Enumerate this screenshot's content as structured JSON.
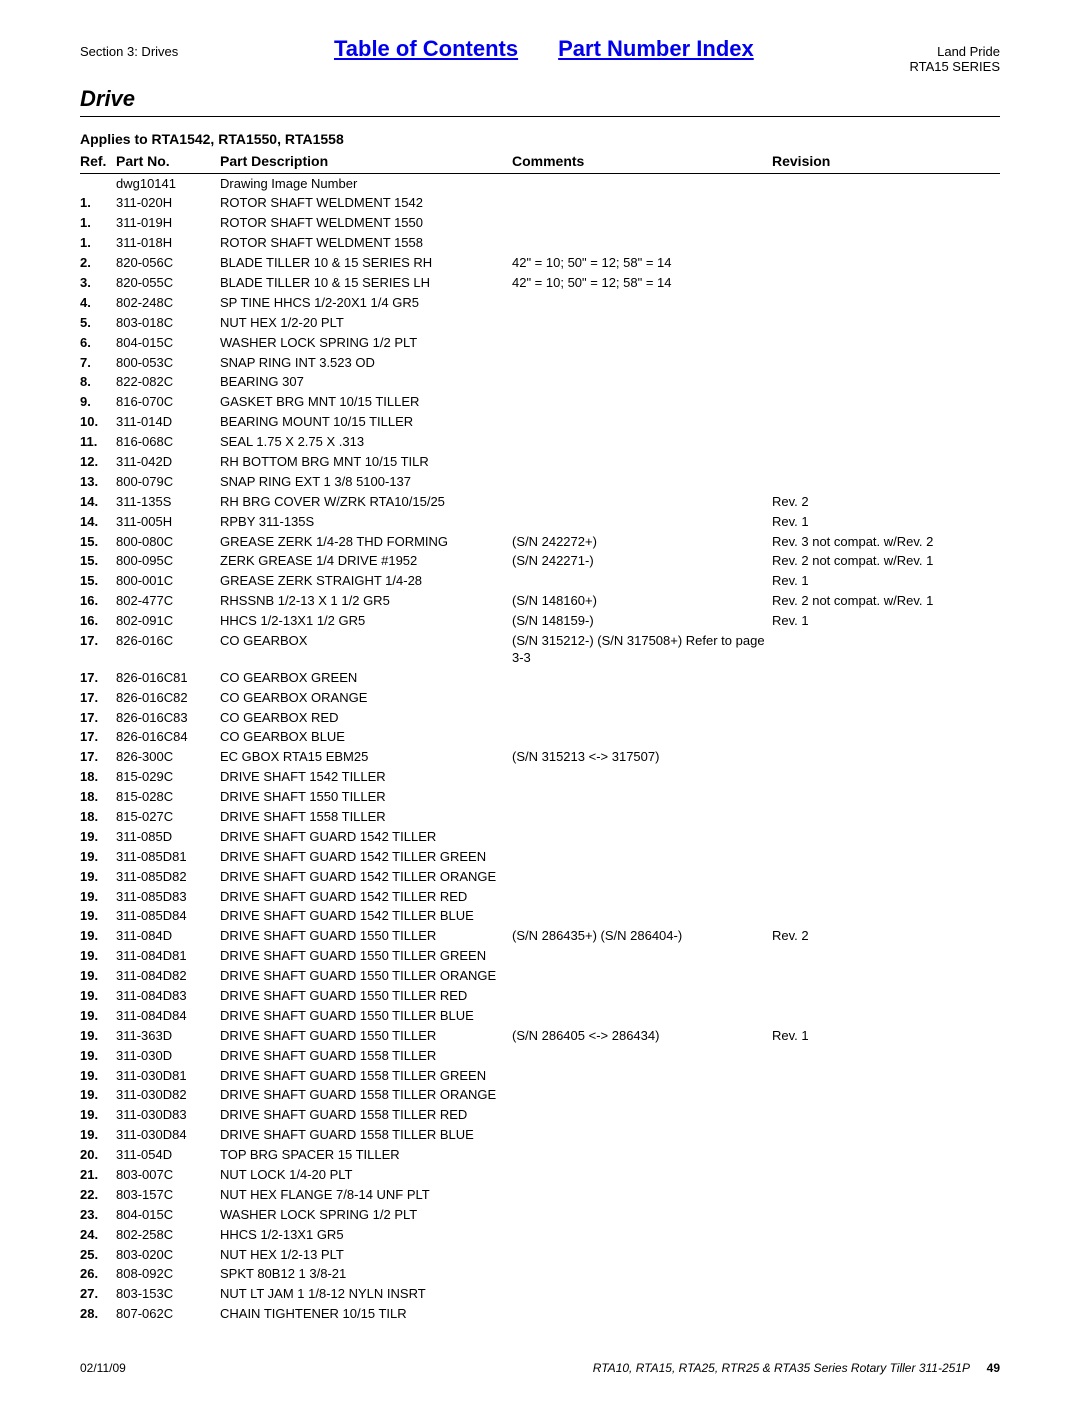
{
  "header": {
    "section_label": "Section 3: Drives",
    "toc_link": "Table of Contents",
    "pni_link": "Part Number Index",
    "brand": "Land Pride",
    "series": "RTA15 SERIES",
    "title": "Drive",
    "applies": "Applies to RTA1542, RTA1550, RTA1558"
  },
  "table": {
    "columns": {
      "ref": "Ref.",
      "partno": "Part No.",
      "desc": "Part Description",
      "comments": "Comments",
      "revision": "Revision"
    },
    "rows": [
      {
        "ref": "",
        "partno": "dwg10141",
        "desc": "Drawing Image Number",
        "comments": "",
        "revision": ""
      },
      {
        "ref": "1.",
        "partno": "311-020H",
        "desc": "ROTOR SHAFT WELDMENT 1542",
        "comments": "",
        "revision": ""
      },
      {
        "ref": "1.",
        "partno": "311-019H",
        "desc": "ROTOR SHAFT WELDMENT 1550",
        "comments": "",
        "revision": ""
      },
      {
        "ref": "1.",
        "partno": "311-018H",
        "desc": "ROTOR SHAFT WELDMENT 1558",
        "comments": "",
        "revision": ""
      },
      {
        "ref": "2.",
        "partno": "820-056C",
        "desc": "BLADE TILLER 10 & 15 SERIES RH",
        "comments": "42\" = 10; 50\" = 12; 58\" = 14",
        "revision": ""
      },
      {
        "ref": "3.",
        "partno": "820-055C",
        "desc": "BLADE TILLER 10 & 15 SERIES LH",
        "comments": "42\" = 10; 50\" = 12; 58\" = 14",
        "revision": ""
      },
      {
        "ref": "4.",
        "partno": "802-248C",
        "desc": "SP TINE HHCS 1/2-20X1 1/4 GR5",
        "comments": "",
        "revision": ""
      },
      {
        "ref": "5.",
        "partno": "803-018C",
        "desc": "NUT HEX 1/2-20 PLT",
        "comments": "",
        "revision": ""
      },
      {
        "ref": "6.",
        "partno": "804-015C",
        "desc": "WASHER LOCK SPRING 1/2 PLT",
        "comments": "",
        "revision": ""
      },
      {
        "ref": "7.",
        "partno": "800-053C",
        "desc": "SNAP RING INT 3.523 OD",
        "comments": "",
        "revision": ""
      },
      {
        "ref": "8.",
        "partno": "822-082C",
        "desc": "BEARING 307",
        "comments": "",
        "revision": ""
      },
      {
        "ref": "9.",
        "partno": "816-070C",
        "desc": "GASKET BRG MNT 10/15 TILLER",
        "comments": "",
        "revision": ""
      },
      {
        "ref": "10.",
        "partno": "311-014D",
        "desc": "BEARING MOUNT 10/15 TILLER",
        "comments": "",
        "revision": ""
      },
      {
        "ref": "11.",
        "partno": "816-068C",
        "desc": "SEAL 1.75 X 2.75 X .313",
        "comments": "",
        "revision": ""
      },
      {
        "ref": "12.",
        "partno": "311-042D",
        "desc": "RH BOTTOM BRG MNT 10/15 TILR",
        "comments": "",
        "revision": ""
      },
      {
        "ref": "13.",
        "partno": "800-079C",
        "desc": "SNAP RING EXT 1 3/8 5100-137",
        "comments": "",
        "revision": ""
      },
      {
        "ref": "14.",
        "partno": "311-135S",
        "desc": "RH BRG COVER W/ZRK RTA10/15/25",
        "comments": "",
        "revision": "Rev. 2"
      },
      {
        "ref": "14.",
        "partno": "311-005H",
        "desc": "RPBY 311-135S",
        "comments": "",
        "revision": "Rev. 1"
      },
      {
        "ref": "15.",
        "partno": "800-080C",
        "desc": "GREASE ZERK 1/4-28 THD FORMING",
        "comments": "(S/N 242272+)",
        "revision": "Rev. 3 not compat. w/Rev. 2"
      },
      {
        "ref": "15.",
        "partno": "800-095C",
        "desc": "ZERK GREASE 1/4 DRIVE #1952",
        "comments": "(S/N 242271-)",
        "revision": "Rev. 2 not compat. w/Rev. 1"
      },
      {
        "ref": "15.",
        "partno": "800-001C",
        "desc": "GREASE ZERK STRAIGHT 1/4-28",
        "comments": "",
        "revision": "Rev. 1"
      },
      {
        "ref": "16.",
        "partno": "802-477C",
        "desc": "RHSSNB 1/2-13 X 1 1/2 GR5",
        "comments": "(S/N 148160+)",
        "revision": "Rev. 2 not compat. w/Rev. 1"
      },
      {
        "ref": "16.",
        "partno": "802-091C",
        "desc": "HHCS 1/2-13X1 1/2 GR5",
        "comments": "(S/N 148159-)",
        "revision": "Rev. 1"
      },
      {
        "ref": "17.",
        "partno": "826-016C",
        "desc": "CO GEARBOX",
        "comments": "(S/N 315212-) (S/N 317508+) Refer to page 3-3",
        "revision": ""
      },
      {
        "ref": "17.",
        "partno": "826-016C81",
        "desc": "CO GEARBOX GREEN",
        "comments": "",
        "revision": ""
      },
      {
        "ref": "17.",
        "partno": "826-016C82",
        "desc": "CO GEARBOX ORANGE",
        "comments": "",
        "revision": ""
      },
      {
        "ref": "17.",
        "partno": "826-016C83",
        "desc": "CO GEARBOX RED",
        "comments": "",
        "revision": ""
      },
      {
        "ref": "17.",
        "partno": "826-016C84",
        "desc": "CO GEARBOX BLUE",
        "comments": "",
        "revision": ""
      },
      {
        "ref": "17.",
        "partno": "826-300C",
        "desc": "EC GBOX RTA15 EBM25",
        "comments": "(S/N 315213 <-> 317507)",
        "revision": ""
      },
      {
        "ref": "18.",
        "partno": "815-029C",
        "desc": "DRIVE SHAFT 1542 TILLER",
        "comments": "",
        "revision": ""
      },
      {
        "ref": "18.",
        "partno": "815-028C",
        "desc": "DRIVE SHAFT 1550 TILLER",
        "comments": "",
        "revision": ""
      },
      {
        "ref": "18.",
        "partno": "815-027C",
        "desc": "DRIVE SHAFT 1558 TILLER",
        "comments": "",
        "revision": ""
      },
      {
        "ref": "19.",
        "partno": "311-085D",
        "desc": "DRIVE SHAFT GUARD 1542 TILLER",
        "comments": "",
        "revision": ""
      },
      {
        "ref": "19.",
        "partno": "311-085D81",
        "desc": "DRIVE SHAFT GUARD 1542 TILLER GREEN",
        "comments": "",
        "revision": ""
      },
      {
        "ref": "19.",
        "partno": "311-085D82",
        "desc": "DRIVE SHAFT GUARD 1542 TILLER ORANGE",
        "comments": "",
        "revision": ""
      },
      {
        "ref": "19.",
        "partno": "311-085D83",
        "desc": "DRIVE SHAFT GUARD 1542 TILLER RED",
        "comments": "",
        "revision": ""
      },
      {
        "ref": "19.",
        "partno": "311-085D84",
        "desc": "DRIVE SHAFT GUARD 1542 TILLER BLUE",
        "comments": "",
        "revision": ""
      },
      {
        "ref": "19.",
        "partno": "311-084D",
        "desc": "DRIVE SHAFT GUARD 1550 TILLER",
        "comments": "(S/N 286435+) (S/N 286404-)",
        "revision": "Rev. 2"
      },
      {
        "ref": "19.",
        "partno": "311-084D81",
        "desc": "DRIVE SHAFT GUARD 1550 TILLER GREEN",
        "comments": "",
        "revision": ""
      },
      {
        "ref": "19.",
        "partno": "311-084D82",
        "desc": "DRIVE SHAFT GUARD 1550 TILLER ORANGE",
        "comments": "",
        "revision": ""
      },
      {
        "ref": "19.",
        "partno": "311-084D83",
        "desc": "DRIVE SHAFT GUARD 1550 TILLER RED",
        "comments": "",
        "revision": ""
      },
      {
        "ref": "19.",
        "partno": "311-084D84",
        "desc": "DRIVE SHAFT GUARD 1550 TILLER BLUE",
        "comments": "",
        "revision": ""
      },
      {
        "ref": "19.",
        "partno": "311-363D",
        "desc": "DRIVE SHAFT GUARD 1550 TILLER",
        "comments": "(S/N 286405 <-> 286434)",
        "revision": "Rev. 1"
      },
      {
        "ref": "19.",
        "partno": "311-030D",
        "desc": "DRIVE SHAFT GUARD 1558 TILLER",
        "comments": "",
        "revision": ""
      },
      {
        "ref": "19.",
        "partno": "311-030D81",
        "desc": "DRIVE SHAFT GUARD 1558 TILLER GREEN",
        "comments": "",
        "revision": ""
      },
      {
        "ref": "19.",
        "partno": "311-030D82",
        "desc": "DRIVE SHAFT GUARD 1558 TILLER ORANGE",
        "comments": "",
        "revision": ""
      },
      {
        "ref": "19.",
        "partno": "311-030D83",
        "desc": "DRIVE SHAFT GUARD 1558 TILLER RED",
        "comments": "",
        "revision": ""
      },
      {
        "ref": "19.",
        "partno": "311-030D84",
        "desc": "DRIVE SHAFT GUARD 1558 TILLER BLUE",
        "comments": "",
        "revision": ""
      },
      {
        "ref": "20.",
        "partno": "311-054D",
        "desc": "TOP BRG SPACER 15 TILLER",
        "comments": "",
        "revision": ""
      },
      {
        "ref": "21.",
        "partno": "803-007C",
        "desc": "NUT LOCK 1/4-20 PLT",
        "comments": "",
        "revision": ""
      },
      {
        "ref": "22.",
        "partno": "803-157C",
        "desc": "NUT HEX FLANGE 7/8-14 UNF PLT",
        "comments": "",
        "revision": ""
      },
      {
        "ref": "23.",
        "partno": "804-015C",
        "desc": "WASHER LOCK SPRING 1/2 PLT",
        "comments": "",
        "revision": ""
      },
      {
        "ref": "24.",
        "partno": "802-258C",
        "desc": "HHCS 1/2-13X1 GR5",
        "comments": "",
        "revision": ""
      },
      {
        "ref": "25.",
        "partno": "803-020C",
        "desc": "NUT HEX 1/2-13 PLT",
        "comments": "",
        "revision": ""
      },
      {
        "ref": "26.",
        "partno": "808-092C",
        "desc": "SPKT 80B12 1 3/8-21",
        "comments": "",
        "revision": ""
      },
      {
        "ref": "27.",
        "partno": "803-153C",
        "desc": "NUT LT JAM 1 1/8-12 NYLN INSRT",
        "comments": "",
        "revision": ""
      },
      {
        "ref": "28.",
        "partno": "807-062C",
        "desc": "CHAIN TIGHTENER 10/15 TILR",
        "comments": "",
        "revision": ""
      }
    ]
  },
  "footer": {
    "date": "02/11/09",
    "doc": "RTA10, RTA15, RTA25, RTR25 & RTA35 Series Rotary Tiller 311-251P",
    "page": "49"
  }
}
